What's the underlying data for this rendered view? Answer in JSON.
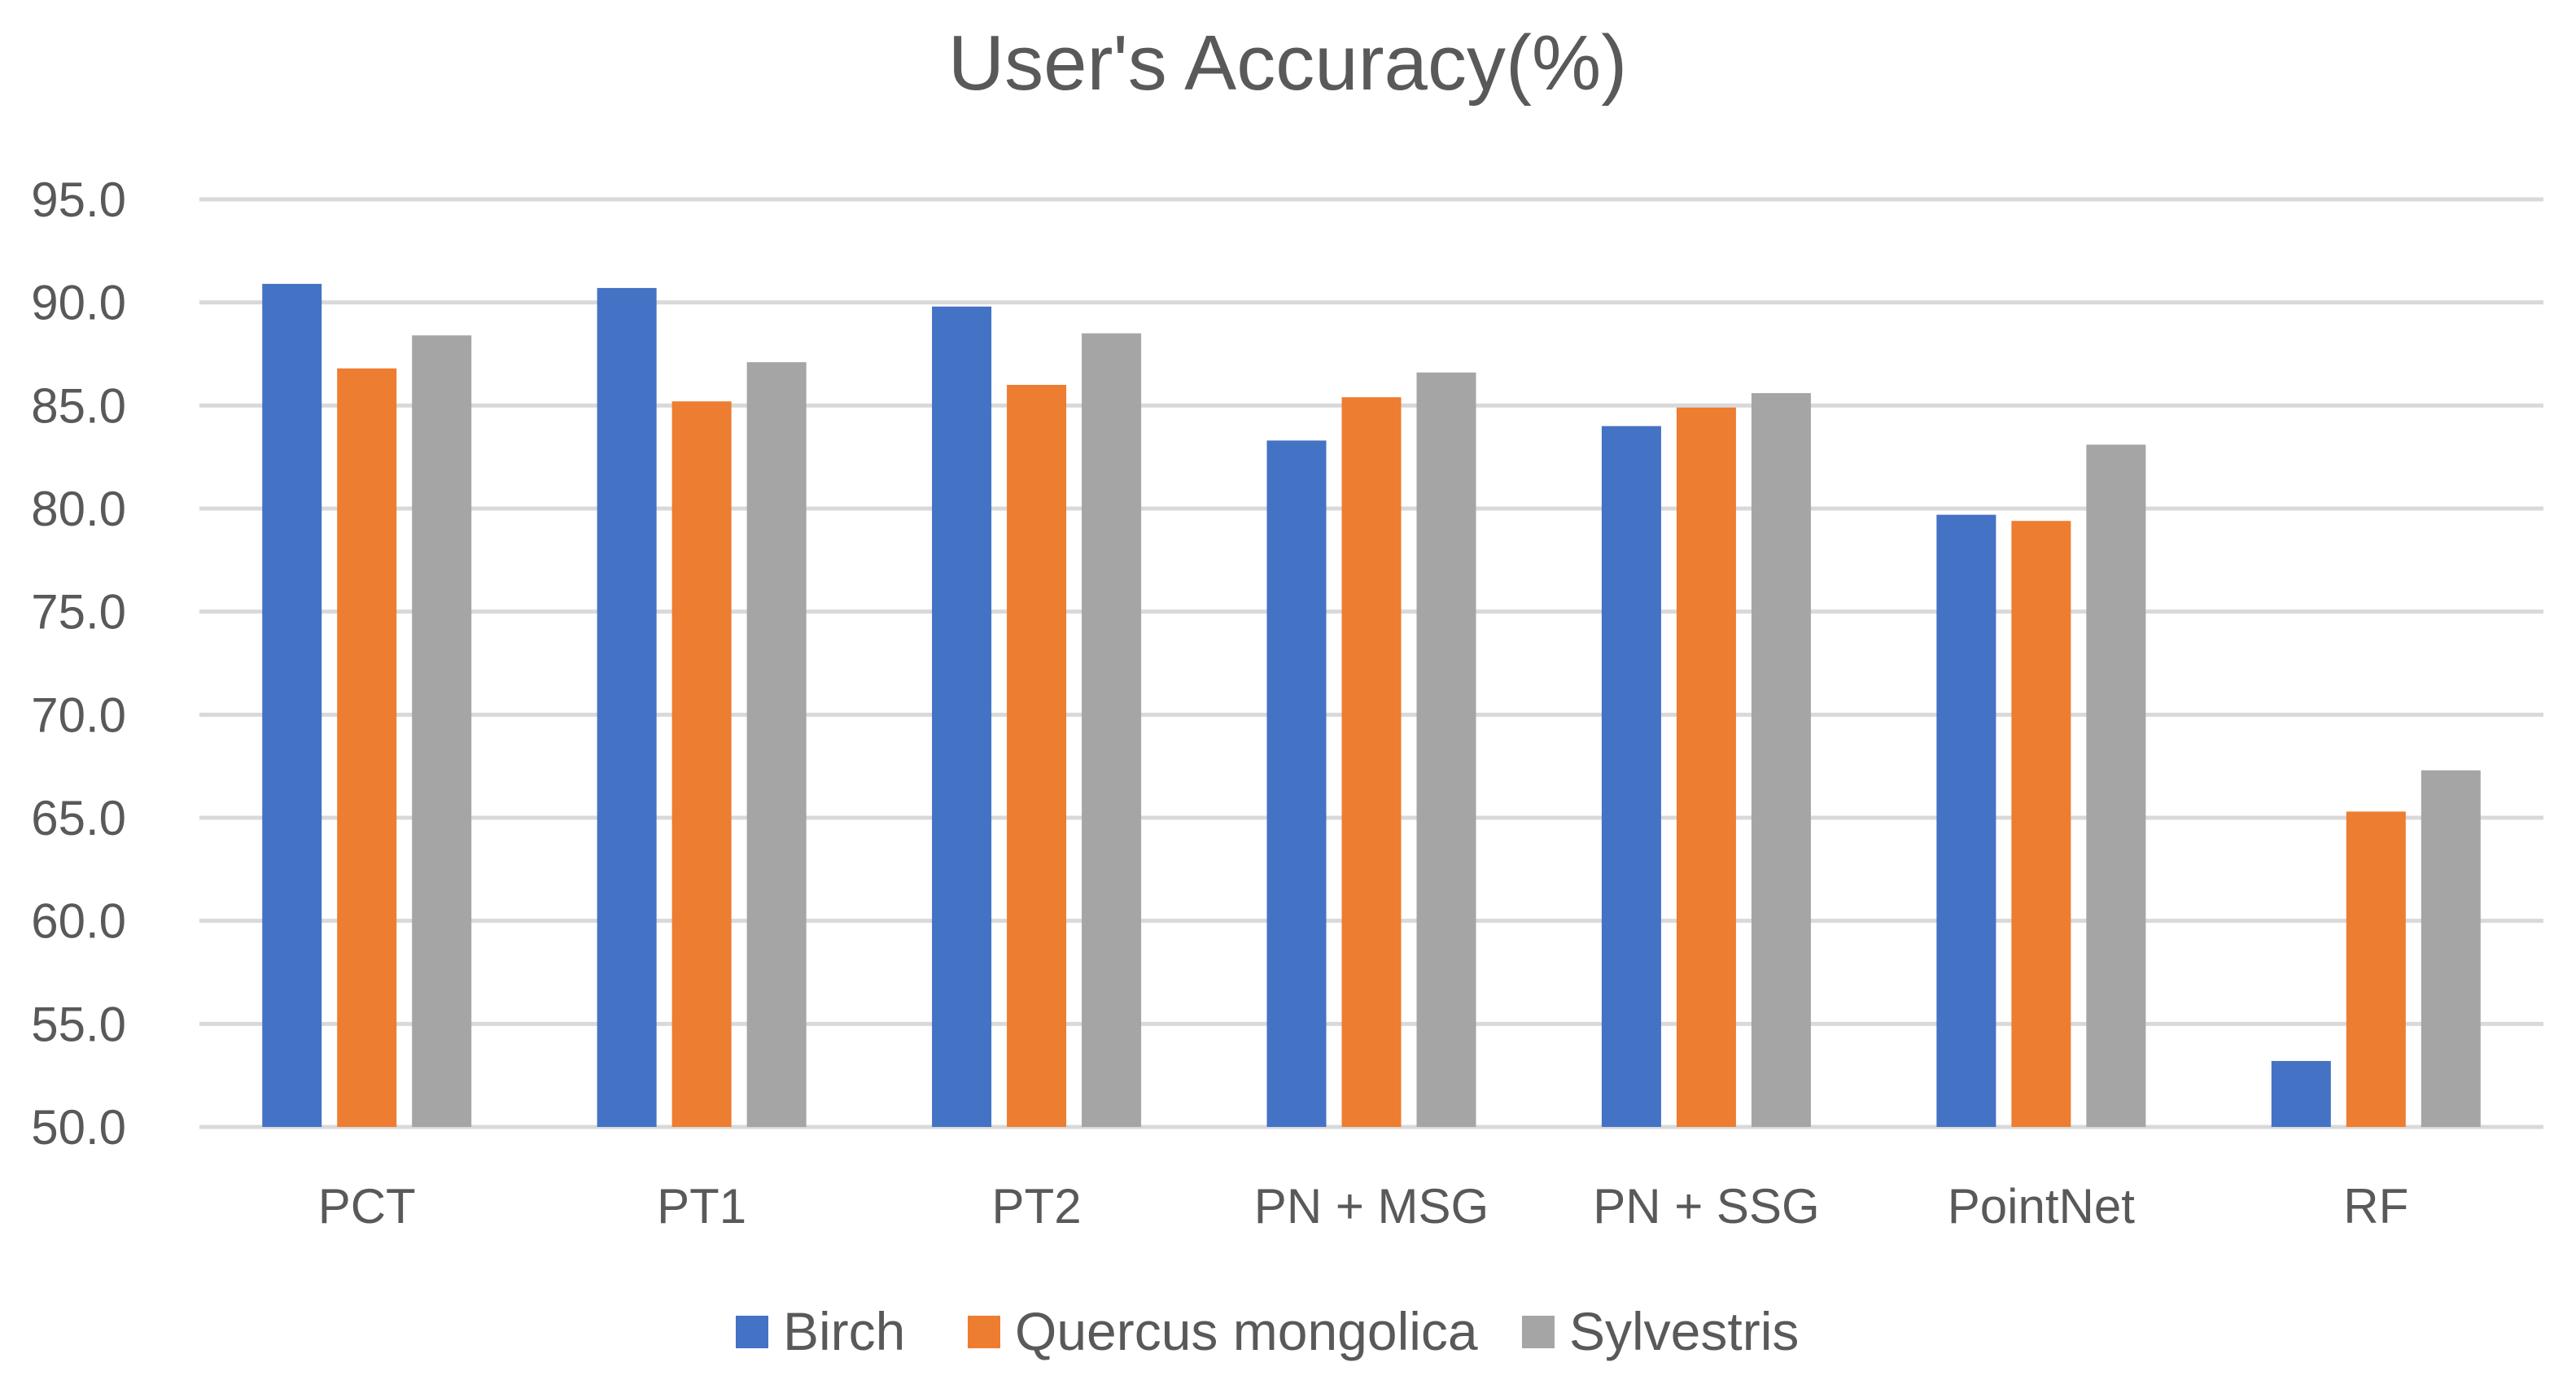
{
  "chart_data": {
    "type": "bar",
    "title": "User's Accuracy(%)",
    "xlabel": "",
    "ylabel": "",
    "ylim": [
      50,
      95
    ],
    "ytick_step": 5,
    "ytick_labels": [
      "50.0",
      "55.0",
      "60.0",
      "65.0",
      "70.0",
      "75.0",
      "80.0",
      "85.0",
      "90.0",
      "95.0"
    ],
    "grid": true,
    "legend_position": "bottom",
    "categories": [
      "PCT",
      "PT1",
      "PT2",
      "PN + MSG",
      "PN + SSG",
      "PointNet",
      "RF"
    ],
    "series": [
      {
        "name": "Birch",
        "color": "#4472C4",
        "values": [
          90.9,
          90.7,
          89.8,
          83.3,
          84.0,
          79.7,
          53.2
        ]
      },
      {
        "name": "Quercus mongolica",
        "color": "#ED7D31",
        "values": [
          86.8,
          85.2,
          86.0,
          85.4,
          84.9,
          79.4,
          65.3
        ]
      },
      {
        "name": "Sylvestris",
        "color": "#A5A5A5",
        "values": [
          88.4,
          87.1,
          88.5,
          86.6,
          85.6,
          83.1,
          67.3
        ]
      }
    ]
  }
}
